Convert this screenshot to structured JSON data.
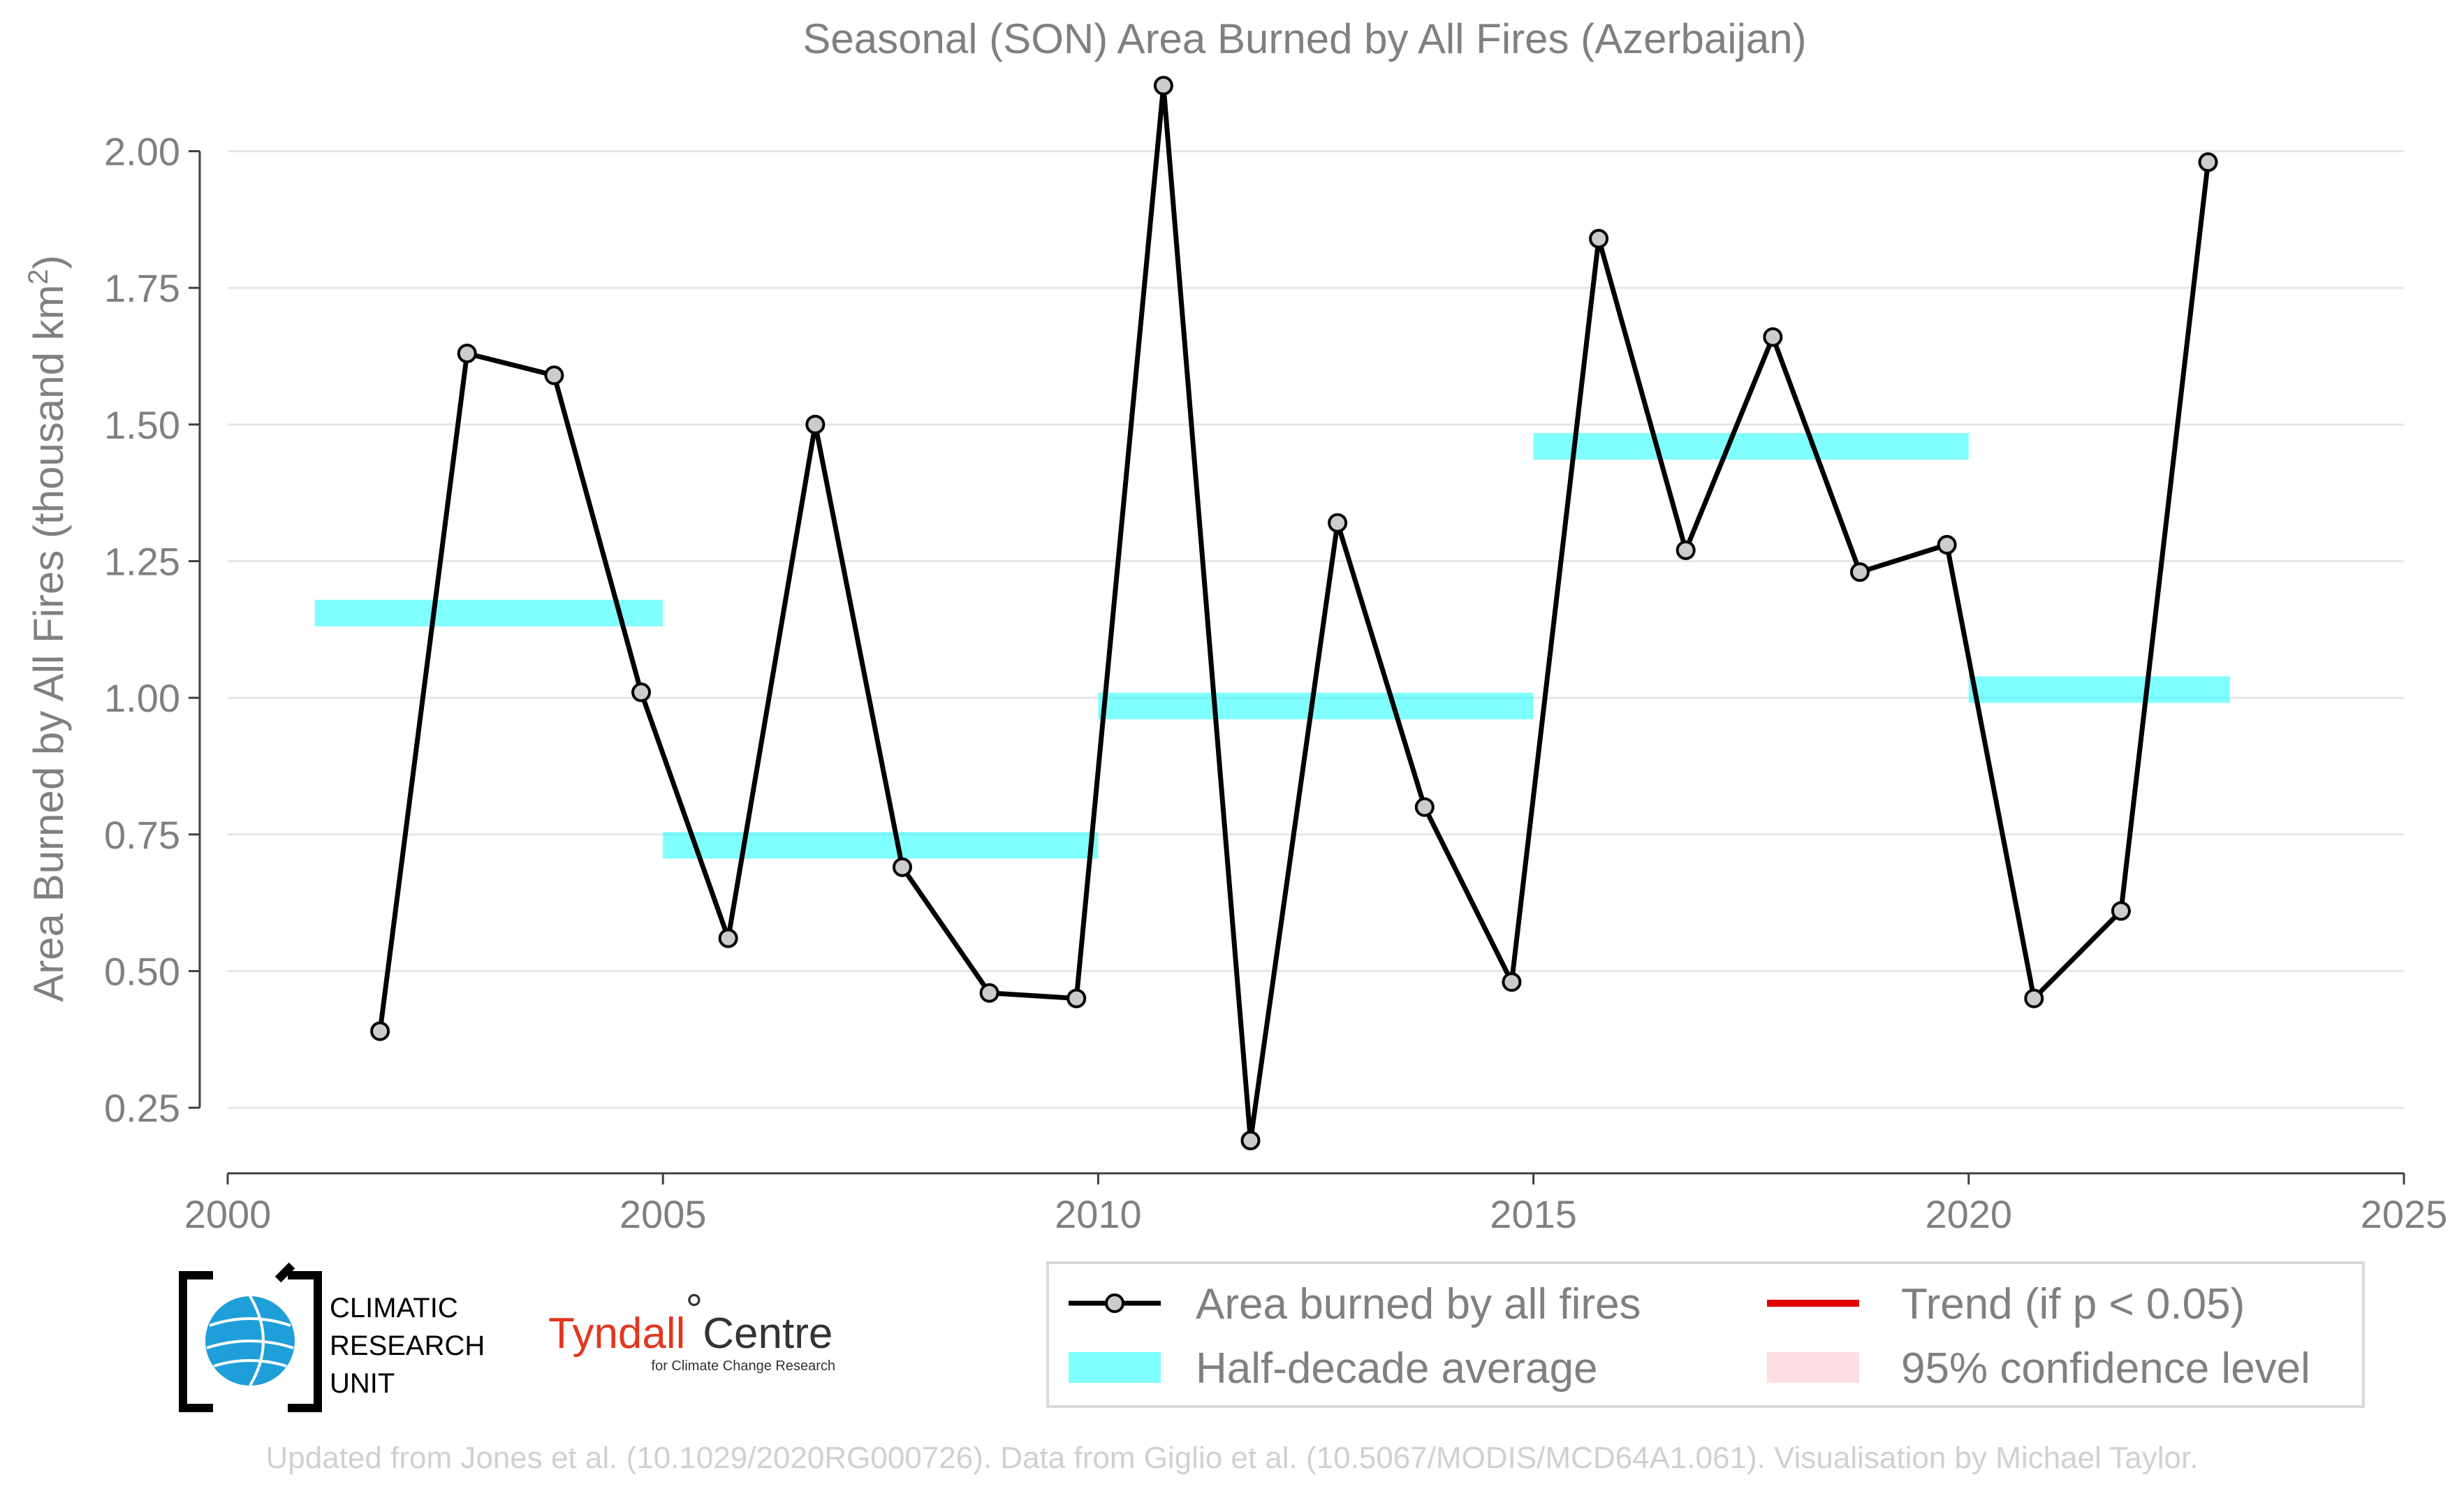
{
  "chart_data": {
    "type": "line",
    "title": "Seasonal (SON) Area Burned by All Fires (Azerbaijan)",
    "ylabel": "Area Burned by All Fires (thousand km²)",
    "xlabel": "",
    "xlim": [
      2000,
      2025
    ],
    "ylim": [
      0.13,
      2.2
    ],
    "x_ticks": [
      2000,
      2005,
      2010,
      2015,
      2020,
      2025
    ],
    "x_tick_labels": [
      "2000",
      "2005",
      "2010",
      "2015",
      "2020",
      "2025"
    ],
    "y_ticks": [
      0.25,
      0.5,
      0.75,
      1.0,
      1.25,
      1.5,
      1.75,
      2.0
    ],
    "y_tick_labels": [
      "0.25",
      "0.50",
      "0.75",
      "1.00",
      "1.25",
      "1.50",
      "1.75",
      "2.00"
    ],
    "grid": "horizontal",
    "series": [
      {
        "name": "Area burned by all fires",
        "color": "#000000",
        "marker_fill": "#cccccc",
        "x": [
          2001.75,
          2002.75,
          2003.75,
          2004.75,
          2005.75,
          2006.75,
          2007.75,
          2008.75,
          2009.75,
          2010.75,
          2011.75,
          2012.75,
          2013.75,
          2014.75,
          2015.75,
          2016.75,
          2017.75,
          2018.75,
          2019.75,
          2020.75,
          2021.75,
          2022.75
        ],
        "values": [
          0.39,
          1.63,
          1.59,
          1.01,
          0.56,
          1.5,
          0.69,
          0.46,
          0.45,
          2.12,
          0.19,
          1.32,
          0.8,
          0.48,
          1.84,
          1.27,
          1.66,
          1.23,
          1.28,
          0.45,
          0.61,
          1.98
        ]
      }
    ],
    "half_decade_averages": {
      "name": "Half-decade average",
      "color": "#00ffff",
      "segments": [
        {
          "start": 2001,
          "end": 2005,
          "value": 1.155
        },
        {
          "start": 2005,
          "end": 2010,
          "value": 0.73
        },
        {
          "start": 2010,
          "end": 2015,
          "value": 0.985
        },
        {
          "start": 2015,
          "end": 2020,
          "value": 1.46
        },
        {
          "start": 2020,
          "end": 2023,
          "value": 1.015
        }
      ]
    },
    "legend": {
      "position": "bottom-right",
      "entries": [
        {
          "label": "Area burned by all fires",
          "symbol": "line-marker",
          "color": "#000000"
        },
        {
          "label": "Trend (if p < 0.05)",
          "symbol": "line",
          "color": "#e00000"
        },
        {
          "label": "Half-decade average",
          "symbol": "band",
          "color": "#00ffff"
        },
        {
          "label": "95% confidence level",
          "symbol": "band",
          "color": "#ffb6c1"
        }
      ]
    }
  },
  "logos": {
    "cru": [
      "CLIMATIC",
      "RESEARCH",
      "UNIT"
    ],
    "tyndall_main": "Tyndall",
    "tyndall_degree": "°",
    "tyndall_centre": "Centre",
    "tyndall_sub": "for Climate Change Research"
  },
  "footer": "Updated from Jones et al. (10.1029/2020RG000726). Data from Giglio et al. (10.5067/MODIS/MCD64A1.061). Visualisation by Michael Taylor."
}
